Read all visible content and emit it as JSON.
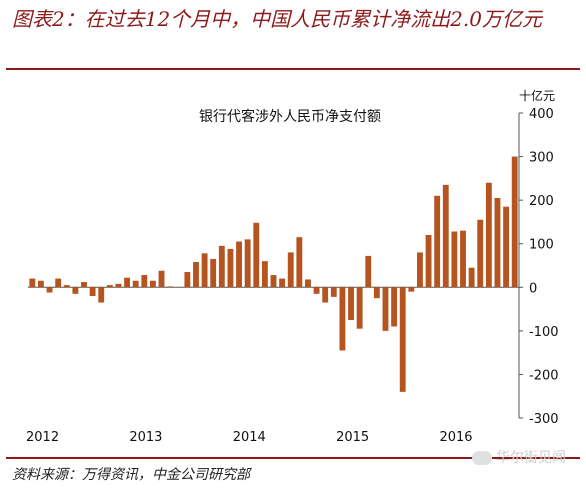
{
  "header": {
    "title": "图表2：在过去12个月中，中国人民币累计净流出2.0万亿元"
  },
  "footer": {
    "source": "资料来源：万得资讯，中金公司研究部",
    "watermark": "华尔街见闻"
  },
  "chart_data": {
    "type": "bar",
    "title": "银行代客涉外人民币净支付额",
    "ylabel": "十亿元",
    "ylim": [
      -300,
      400
    ],
    "yticks": [
      400,
      300,
      200,
      100,
      0,
      -100,
      -200,
      -300
    ],
    "year_labels": [
      {
        "label": "2012",
        "index": 0
      },
      {
        "label": "2013",
        "index": 12
      },
      {
        "label": "2014",
        "index": 24
      },
      {
        "label": "2015",
        "index": 36
      },
      {
        "label": "2016",
        "index": 48
      }
    ],
    "bar_color": "#b5541f",
    "values": [
      20,
      15,
      -12,
      20,
      5,
      -15,
      12,
      -20,
      -35,
      5,
      8,
      22,
      15,
      28,
      15,
      38,
      2,
      0,
      35,
      58,
      78,
      65,
      95,
      88,
      105,
      110,
      148,
      60,
      28,
      20,
      80,
      115,
      18,
      -15,
      -35,
      -22,
      -145,
      -75,
      -95,
      72,
      -25,
      -100,
      -90,
      -240,
      -10,
      80,
      120,
      210,
      235,
      128,
      130,
      45,
      155,
      240,
      205,
      185,
      300
    ]
  }
}
